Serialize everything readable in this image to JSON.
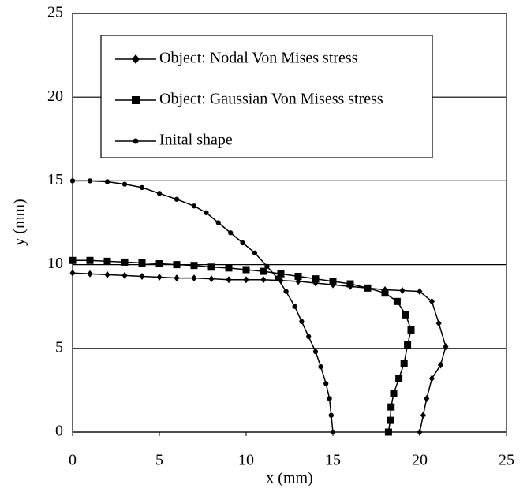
{
  "chart_data": {
    "type": "line",
    "x_label": "x (mm)",
    "y_label": "y (mm)",
    "xlim": [
      0,
      25
    ],
    "xticks": [
      0,
      5,
      10,
      15,
      20,
      25
    ],
    "ylim": [
      0,
      25
    ],
    "yticks": [
      0,
      5,
      10,
      15,
      20,
      25
    ],
    "grid": true,
    "legend": "top",
    "series": [
      {
        "name": "Object: Nodal Von Mises stress",
        "color": "#000000",
        "marker": "diamond",
        "x": [
          0,
          1,
          2,
          3,
          4,
          5,
          6,
          7,
          8,
          9,
          10,
          11,
          12,
          13,
          14,
          15,
          16,
          17,
          18,
          19,
          20,
          20.7,
          21.1,
          21.5,
          21.2,
          20.7,
          20.4,
          20.2,
          20
        ],
        "values": [
          9.5,
          9.45,
          9.4,
          9.35,
          9.3,
          9.25,
          9.2,
          9.2,
          9.15,
          9.1,
          9.1,
          9.1,
          9.05,
          9.0,
          8.9,
          8.8,
          8.7,
          8.6,
          8.5,
          8.45,
          8.4,
          7.8,
          6.5,
          5.1,
          4.0,
          3.2,
          2.0,
          1.0,
          0
        ]
      },
      {
        "name": "Object: Gaussian Von Misess stress",
        "color": "#000000",
        "marker": "square",
        "x": [
          0,
          1,
          2,
          3,
          4,
          5,
          6,
          7,
          8,
          9,
          10,
          11,
          12,
          13,
          14,
          15,
          16,
          17,
          18,
          18.7,
          19.2,
          19.5,
          19.3,
          19.1,
          18.8,
          18.5,
          18.35,
          18.3,
          18.2
        ],
        "values": [
          10.25,
          10.25,
          10.2,
          10.15,
          10.1,
          10.05,
          10.0,
          9.95,
          9.85,
          9.8,
          9.7,
          9.6,
          9.45,
          9.3,
          9.15,
          9.0,
          8.85,
          8.6,
          8.3,
          7.8,
          7.0,
          6.1,
          5.2,
          4.1,
          3.2,
          2.3,
          1.5,
          0.7,
          0
        ]
      },
      {
        "name": "Inital shape",
        "color": "#000000",
        "marker": "circle",
        "x": [
          0,
          1,
          2,
          3,
          4,
          5,
          6,
          7,
          7.7,
          8.4,
          9.1,
          9.8,
          10.5,
          11.2,
          11.8,
          12.3,
          12.8,
          13.2,
          13.6,
          14,
          14.3,
          14.6,
          14.8,
          14.9,
          15
        ],
        "values": [
          15,
          15,
          14.95,
          14.8,
          14.6,
          14.25,
          13.9,
          13.5,
          13.1,
          12.5,
          11.9,
          11.3,
          10.7,
          9.9,
          9.2,
          8.4,
          7.5,
          6.6,
          5.7,
          4.8,
          3.9,
          2.9,
          2.0,
          1.0,
          0
        ]
      }
    ]
  }
}
